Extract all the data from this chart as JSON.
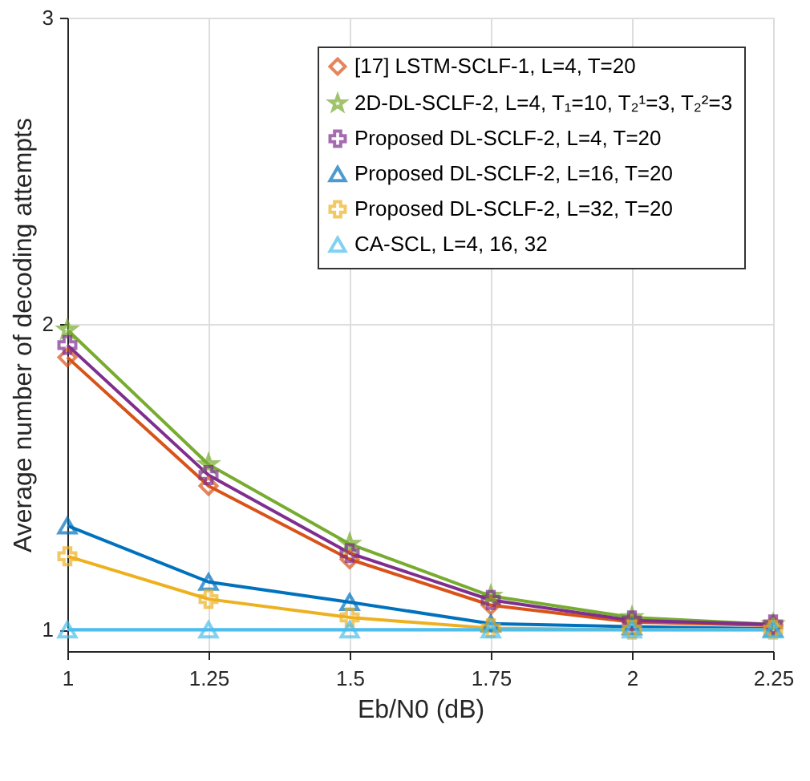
{
  "chart_data": {
    "type": "line",
    "xlabel": "Eb/N0 (dB)",
    "ylabel": "Average number of decoding attempts",
    "x": [
      1,
      1.25,
      1.5,
      1.75,
      2,
      2.25
    ],
    "series": [
      {
        "name": "[17] LSTM-SCLF-1, L=4, T=20",
        "color": "#d95319",
        "marker": "diamond",
        "values": [
          1.89,
          1.47,
          1.23,
          1.08,
          1.025,
          1.014
        ]
      },
      {
        "name": "2D-DL-SCLF-2, L=4, T₁=10, T₂¹=3, T₂²=3",
        "color": "#77ac30",
        "marker": "star",
        "values": [
          1.98,
          1.54,
          1.28,
          1.11,
          1.04,
          1.017
        ]
      },
      {
        "name": "Proposed DL-SCLF-2, L=4, T=20",
        "color": "#7e2f8e",
        "marker": "cross",
        "values": [
          1.93,
          1.505,
          1.25,
          1.097,
          1.03,
          1.017
        ]
      },
      {
        "name": "Proposed DL-SCLF-2, L=16, T=20",
        "color": "#0072bd",
        "marker": "triangle",
        "values": [
          1.34,
          1.156,
          1.09,
          1.02,
          1.01,
          1.003
        ]
      },
      {
        "name": "Proposed DL-SCLF-2, L=32, T=20",
        "color": "#edb120",
        "marker": "cross",
        "values": [
          1.24,
          1.1,
          1.04,
          1.005,
          1.0,
          1.0
        ]
      },
      {
        "name": "CA-SCL, L=4, 16, 32",
        "color": "#4dbeee",
        "marker": "triangle",
        "values": [
          1.0,
          1.0,
          1.0,
          1.0,
          1.0,
          1.0
        ]
      }
    ],
    "xlim": [
      1,
      2.25
    ],
    "xticks": [
      1,
      1.25,
      1.5,
      1.75,
      2,
      2.25
    ],
    "ylim": [
      0.93,
      3
    ],
    "yticks": [
      1,
      2,
      3
    ],
    "grid": true,
    "legend": "top right",
    "line_style": "solid"
  }
}
